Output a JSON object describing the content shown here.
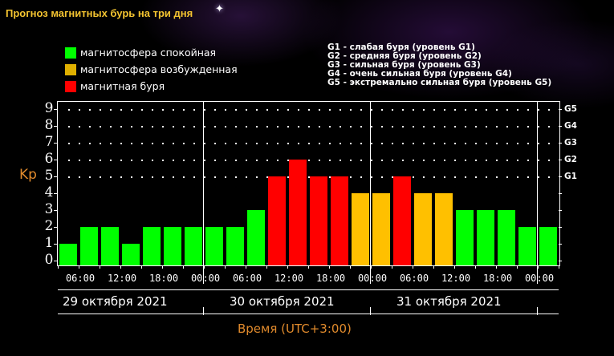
{
  "title": "Прогноз магнитных бурь на три дня",
  "legend": [
    {
      "label": "магнитосфера спокойная",
      "color": "#00ff00"
    },
    {
      "label": "магнитосфера возбужденная",
      "color": "#ffc000"
    },
    {
      "label": "магнитная буря",
      "color": "#ff0000"
    }
  ],
  "g_levels": [
    "G1 - слабая буря (уровень G1)",
    "G2 - средняя буря (уровень G2)",
    "G3 - сильная буря (уровень G3)",
    "G4 - очень сильная буря (уровень G4)",
    "G5 - экстремально сильная буря (уровень G5)"
  ],
  "axis": {
    "y_label": "Kp",
    "x_label": "Время (UTC+3:00)",
    "y_ticks": [
      "0",
      "1",
      "2",
      "3",
      "4",
      "5",
      "6",
      "7",
      "8",
      "9"
    ],
    "g_ticks": [
      "G1",
      "G2",
      "G3",
      "G4",
      "G5"
    ],
    "time_labels": [
      "06:00",
      "12:00",
      "18:00",
      "00:00",
      "06:00",
      "12:00",
      "18:00",
      "00:00",
      "06:00",
      "12:00",
      "18:00",
      "00:00"
    ],
    "dates": [
      "29 октября 2021",
      "30 октября 2021",
      "31 октября 2021"
    ]
  },
  "chart_data": {
    "type": "bar",
    "title": "Прогноз магнитных бурь на три дня",
    "xlabel": "Время (UTC+3:00)",
    "ylabel": "Kp",
    "ylim": [
      0,
      9
    ],
    "categories": [
      "29.10 03:00",
      "29.10 06:00",
      "29.10 09:00",
      "29.10 12:00",
      "29.10 15:00",
      "29.10 18:00",
      "29.10 21:00",
      "30.10 00:00",
      "30.10 03:00",
      "30.10 06:00",
      "30.10 09:00",
      "30.10 12:00",
      "30.10 15:00",
      "30.10 18:00",
      "30.10 21:00",
      "31.10 00:00",
      "31.10 03:00",
      "31.10 06:00",
      "31.10 09:00",
      "31.10 12:00",
      "31.10 15:00",
      "31.10 18:00",
      "31.10 21:00",
      "01.11 00:00"
    ],
    "values": [
      1,
      2,
      2,
      1,
      2,
      2,
      2,
      2,
      2,
      3,
      5,
      6,
      5,
      5,
      4,
      4,
      5,
      4,
      4,
      3,
      3,
      3,
      2,
      2
    ],
    "colors": [
      "green",
      "green",
      "green",
      "green",
      "green",
      "green",
      "green",
      "green",
      "green",
      "green",
      "red",
      "red",
      "red",
      "red",
      "yellow",
      "yellow",
      "red",
      "yellow",
      "yellow",
      "green",
      "green",
      "green",
      "green",
      "green"
    ],
    "right_axis": {
      "G1": 5,
      "G2": 6,
      "G3": 7,
      "G4": 8,
      "G5": 9
    },
    "grid": "dotted above Kp 5",
    "legend_position": "top-left"
  }
}
